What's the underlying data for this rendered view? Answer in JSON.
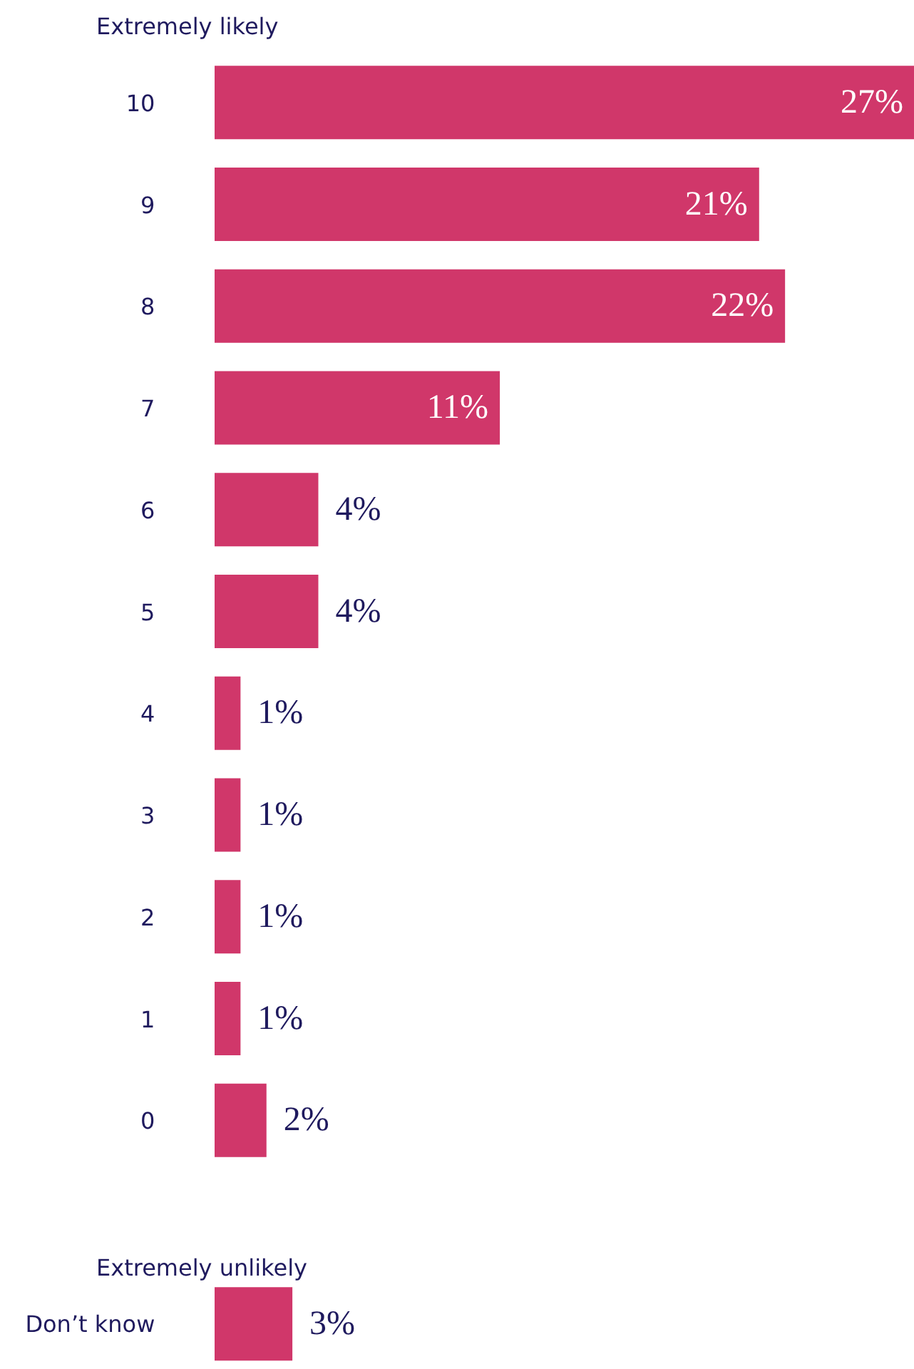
{
  "chart_data": {
    "type": "bar",
    "orientation": "horizontal",
    "categories": [
      "10",
      "9",
      "8",
      "7",
      "6",
      "5",
      "4",
      "3",
      "2",
      "1",
      "0",
      "Don’t know"
    ],
    "values": [
      27,
      21,
      22,
      11,
      4,
      4,
      1,
      1,
      1,
      1,
      2,
      3
    ],
    "value_labels": [
      "27%",
      "21%",
      "22%",
      "11%",
      "4%",
      "4%",
      "1%",
      "1%",
      "1%",
      "1%",
      "2%",
      "3%"
    ],
    "color": "#d0376a",
    "grid": false,
    "annotations": [
      "Extremely likely",
      "Extremely unlikely"
    ]
  }
}
